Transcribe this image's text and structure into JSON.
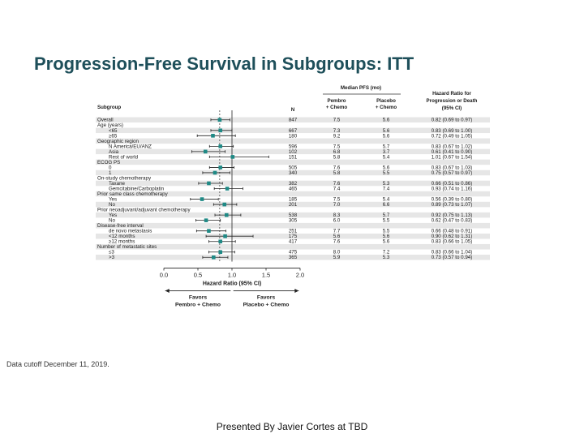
{
  "title": "Progression-Free Survival in Subgroups: ITT",
  "data_cutoff": "Data cutoff December 11, 2019.",
  "footer": "Presented By Javier Cortes at TBD",
  "colors": {
    "title": "#1e4f5a",
    "marker": "#1f8a86",
    "row_shade": "#e6e6e6"
  },
  "chart_data": {
    "type": "forest",
    "headers": {
      "subgroup": "Subgroup",
      "n": "N",
      "median_group": "Median PFS (mo)",
      "pembro": [
        "Pembro",
        "+ Chemo"
      ],
      "placebo": [
        "Placebo",
        "+ Chemo"
      ],
      "hr": [
        "Hazard Ratio for",
        "Progression or Death",
        "(95% CI)"
      ]
    },
    "xlabel": "Hazard Ratio (95% CI)",
    "xticks": [
      "0.0",
      "0.5",
      "1.0",
      "1.5",
      "2.0"
    ],
    "xlim": [
      0,
      2
    ],
    "favors_left": [
      "Favors",
      "Pembro + Chemo"
    ],
    "favors_right": [
      "Favors",
      "Placebo + Chemo"
    ],
    "rows": [
      {
        "label": "Overall",
        "indent": 0,
        "n": "847",
        "pembro": "7.5",
        "placebo": "5.6",
        "hr_text": "0.82 (0.69 to 0.97)",
        "hr": 0.82,
        "lo": 0.69,
        "hi": 0.97
      },
      {
        "label": "Age (years)",
        "indent": 0,
        "header": true
      },
      {
        "label": "<65",
        "indent": 1,
        "n": "667",
        "pembro": "7.3",
        "placebo": "5.6",
        "hr_text": "0.83 (0.69 to 1.00)",
        "hr": 0.83,
        "lo": 0.69,
        "hi": 1.0
      },
      {
        "label": "≥65",
        "indent": 1,
        "n": "180",
        "pembro": "9.2",
        "placebo": "5.6",
        "hr_text": "0.72 (0.49 to 1.05)",
        "hr": 0.72,
        "lo": 0.49,
        "hi": 1.05
      },
      {
        "label": "Geographic region",
        "indent": 0,
        "header": true
      },
      {
        "label": "N America/EU/ANZ",
        "indent": 1,
        "n": "596",
        "pembro": "7.5",
        "placebo": "5.7",
        "hr_text": "0.83 (0.67 to 1.02)",
        "hr": 0.83,
        "lo": 0.67,
        "hi": 1.02
      },
      {
        "label": "Asia",
        "indent": 1,
        "n": "102",
        "pembro": "6.8",
        "placebo": "3.7",
        "hr_text": "0.61 (0.41 to 0.90)",
        "hr": 0.61,
        "lo": 0.41,
        "hi": 0.9
      },
      {
        "label": "Rest of world",
        "indent": 1,
        "n": "151",
        "pembro": "5.8",
        "placebo": "5.4",
        "hr_text": "1.01 (0.67 to 1.54)",
        "hr": 1.01,
        "lo": 0.67,
        "hi": 1.54
      },
      {
        "label": "ECOG PS",
        "indent": 0,
        "header": true
      },
      {
        "label": "0",
        "indent": 1,
        "n": "505",
        "pembro": "7.6",
        "placebo": "5.6",
        "hr_text": "0.83 (0.67 to 1.03)",
        "hr": 0.83,
        "lo": 0.67,
        "hi": 1.03
      },
      {
        "label": "1",
        "indent": 1,
        "n": "340",
        "pembro": "5.8",
        "placebo": "5.5",
        "hr_text": "0.75 (0.57 to 0.97)",
        "hr": 0.75,
        "lo": 0.57,
        "hi": 0.97
      },
      {
        "label": "On-study chemotherapy",
        "indent": 0,
        "header": true
      },
      {
        "label": "Taxane",
        "indent": 1,
        "n": "382",
        "pembro": "7.6",
        "placebo": "5.3",
        "hr_text": "0.66 (0.51 to 0.86)",
        "hr": 0.66,
        "lo": 0.51,
        "hi": 0.86
      },
      {
        "label": "Gemcitabine/Carboplatin",
        "indent": 1,
        "n": "465",
        "pembro": "7.4",
        "placebo": "7.4",
        "hr_text": "0.93 (0.74 to 1.16)",
        "hr": 0.93,
        "lo": 0.74,
        "hi": 1.16
      },
      {
        "label": "Prior same class chemotherapy",
        "indent": 0,
        "header": true
      },
      {
        "label": "Yes",
        "indent": 1,
        "n": "185",
        "pembro": "7.5",
        "placebo": "5.4",
        "hr_text": "0.56 (0.39 to 0.80)",
        "hr": 0.56,
        "lo": 0.39,
        "hi": 0.8
      },
      {
        "label": "No",
        "indent": 1,
        "n": "201",
        "pembro": "7.0",
        "placebo": "6.6",
        "hr_text": "0.89 (0.73 to 1.07)",
        "hr": 0.89,
        "lo": 0.73,
        "hi": 1.07
      },
      {
        "label": "Prior neoadjuvant/adjuvant chemotherapy",
        "indent": 0,
        "header": true
      },
      {
        "label": "Yes",
        "indent": 1,
        "n": "538",
        "pembro": "8.3",
        "placebo": "5.7",
        "hr_text": "0.92 (0.75 to 1.13)",
        "hr": 0.92,
        "lo": 0.75,
        "hi": 1.13
      },
      {
        "label": "No",
        "indent": 1,
        "n": "305",
        "pembro": "6.0",
        "placebo": "5.5",
        "hr_text": "0.62 (0.47 to 0.83)",
        "hr": 0.62,
        "lo": 0.47,
        "hi": 0.83
      },
      {
        "label": "Disease-free interval",
        "indent": 0,
        "header": true
      },
      {
        "label": "de novo metastasis",
        "indent": 1,
        "n": "251",
        "pembro": "7.7",
        "placebo": "5.5",
        "hr_text": "0.66 (0.48 to 0.91)",
        "hr": 0.66,
        "lo": 0.48,
        "hi": 0.91
      },
      {
        "label": "<12 months",
        "indent": 1,
        "n": "175",
        "pembro": "5.6",
        "placebo": "5.6",
        "hr_text": "0.90 (0.62 to 1.31)",
        "hr": 0.9,
        "lo": 0.62,
        "hi": 1.31
      },
      {
        "label": "≥12 months",
        "indent": 1,
        "n": "417",
        "pembro": "7.6",
        "placebo": "5.6",
        "hr_text": "0.83 (0.66 to 1.05)",
        "hr": 0.83,
        "lo": 0.66,
        "hi": 1.05
      },
      {
        "label": "Number of metastatic sites",
        "indent": 0,
        "header": true
      },
      {
        "label": "≤3",
        "indent": 1,
        "n": "475",
        "pembro": "8.0",
        "placebo": "7.2",
        "hr_text": "0.83 (0.66 to 1.04)",
        "hr": 0.83,
        "lo": 0.66,
        "hi": 1.04
      },
      {
        "label": ">3",
        "indent": 1,
        "n": "365",
        "pembro": "5.9",
        "placebo": "5.3",
        "hr_text": "0.73 (0.57 to 0.94)",
        "hr": 0.73,
        "lo": 0.57,
        "hi": 0.94
      }
    ]
  }
}
